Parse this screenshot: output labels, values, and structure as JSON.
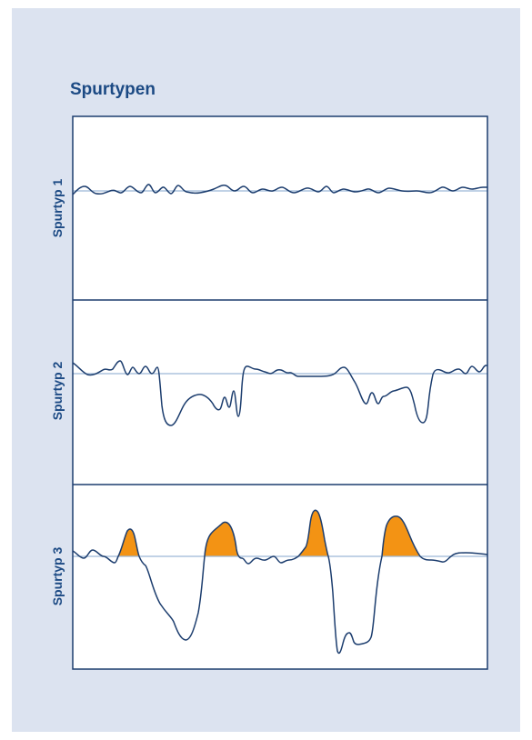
{
  "title": "Spurtypen",
  "panels": [
    {
      "label": "Spurtyp 1"
    },
    {
      "label": "Spurtyp 2"
    },
    {
      "label": "Spurtyp 3"
    }
  ],
  "colors": {
    "card_background": "#dce3f0",
    "panel_fill": "#ffffff",
    "border": "#1c3d6e",
    "trace": "#1c3d6e",
    "baseline": "#9cb8d6",
    "highlight_fill": "#f39314",
    "title": "#1c4a84"
  }
}
